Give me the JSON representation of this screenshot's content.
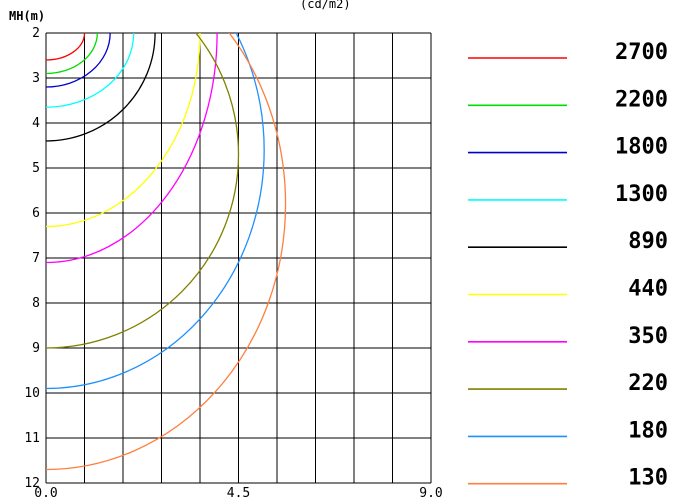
{
  "top_text": "(cd/m2)",
  "chart_data": {
    "type": "line",
    "title": "",
    "ylabel": "MH(m)",
    "xlabel": "",
    "xlim": [
      0,
      9
    ],
    "ylim": [
      2,
      12
    ],
    "y_inverted": true,
    "grid": true,
    "legend_position": "right",
    "x_tick_labels": [
      "0.0",
      "4.5",
      "9.0"
    ],
    "x_ticks": [
      0,
      4.5,
      9
    ],
    "y_tick_labels": [
      "2",
      "3",
      "4",
      "5",
      "6",
      "7",
      "8",
      "9",
      "10",
      "11",
      "12"
    ],
    "y_ticks": [
      2,
      3,
      4,
      5,
      6,
      7,
      8,
      9,
      10,
      11,
      12
    ],
    "series": [
      {
        "name": "2700",
        "color": "#ff0000",
        "rx": 0.9,
        "cy": 2.0,
        "ry": 0.6
      },
      {
        "name": "2200",
        "color": "#00dd00",
        "rx": 1.2,
        "cy": 2.0,
        "ry": 0.9
      },
      {
        "name": "1800",
        "color": "#0000cc",
        "rx": 1.5,
        "cy": 2.0,
        "ry": 1.2
      },
      {
        "name": "1300",
        "color": "#00ffff",
        "rx": 2.05,
        "cy": 2.0,
        "ry": 1.65
      },
      {
        "name": "890",
        "color": "#000000",
        "rx": 2.55,
        "cy": 2.0,
        "ry": 2.4
      },
      {
        "name": "440",
        "color": "#ffff00",
        "rx": 3.6,
        "cy": 2.0,
        "ry": 4.3
      },
      {
        "name": "350",
        "color": "#ff00ff",
        "rx": 4.0,
        "cy": 2.0,
        "ry": 5.1
      },
      {
        "name": "220",
        "color": "#808000",
        "rx": 4.5,
        "cy": 4.7,
        "ry": 4.3
      },
      {
        "name": "180",
        "color": "#1e90ff",
        "rx": 5.1,
        "cy": 4.6,
        "ry": 5.3
      },
      {
        "name": "130",
        "color": "#ff7f3f",
        "rx": 5.6,
        "cy": 5.8,
        "ry": 5.9
      }
    ]
  }
}
